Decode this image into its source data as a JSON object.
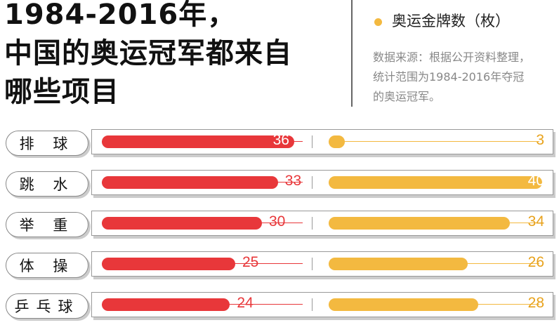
{
  "title_lines": [
    "1984-2016年，",
    "中国的奥运冠军都来自",
    "哪些项目"
  ],
  "legend": {
    "gold": "奥运金牌数（枚）",
    "gold_color": "#f3b940"
  },
  "source": [
    "数据来源：根据公开资料整理，",
    "统计范围为1984-2016年夺冠",
    "的奥运冠军。"
  ],
  "chart_data": {
    "type": "bar",
    "categories": [
      "排 球",
      "跳 水",
      "举 重",
      "体 操",
      "乒乓球"
    ],
    "series": [
      {
        "values": [
          36,
          33,
          30,
          25,
          24
        ],
        "color": "#e8373a"
      },
      {
        "name": "奥运金牌数（枚）",
        "values": [
          3,
          40,
          34,
          26,
          28
        ],
        "color": "#f3b940"
      }
    ]
  }
}
